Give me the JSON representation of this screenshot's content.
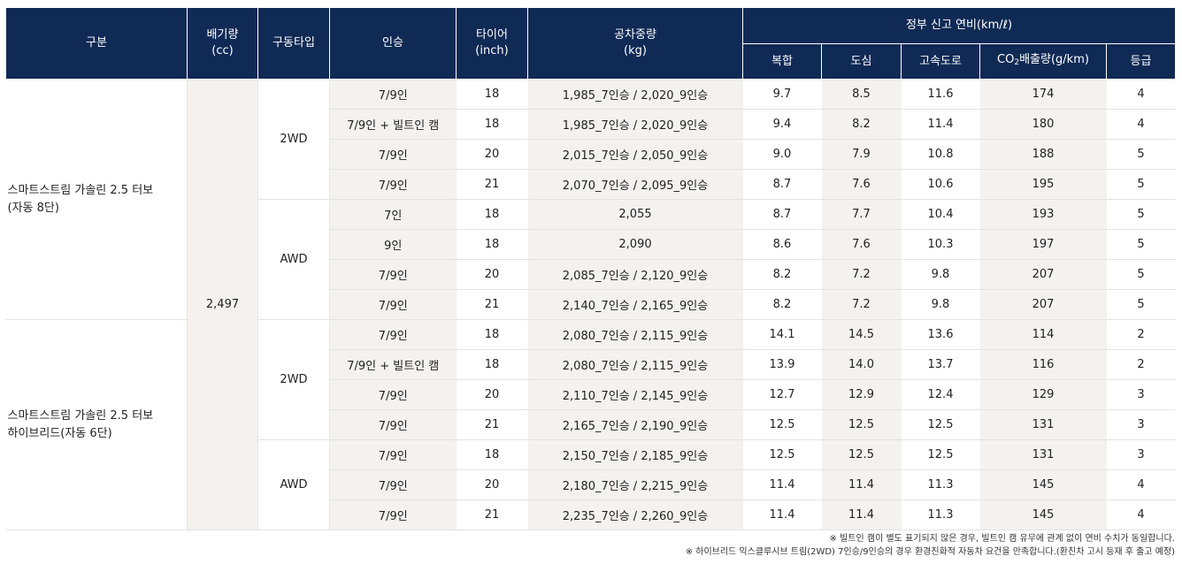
{
  "header": {
    "category": "구분",
    "displacement_line1": "배기량",
    "displacement_line2": "(cc)",
    "drive_type": "구동타입",
    "seating": "인승",
    "tire_line1": "타이어",
    "tire_line2": "(inch)",
    "curb_weight_line1": "공차중량",
    "curb_weight_line2": "(kg)",
    "fuel_economy_group": "정부 신고 연비(km/ℓ)",
    "combined": "복합",
    "urban": "도심",
    "highway": "고속도로",
    "co2_prefix": "CO",
    "co2_sub": "2",
    "co2_suffix": "배출량(g/km)",
    "grade": "등급"
  },
  "groups": [
    {
      "category_line1": "스마트스트림 가솔린 2.5 터보",
      "category_line2": "(자동 8단)",
      "drive_types": [
        {
          "drive": "2WD",
          "rows": [
            {
              "seats": "7/9인",
              "tire": "18",
              "weight": "1,985_7인승 / 2,020_9인승",
              "combined": "9.7",
              "urban": "8.5",
              "highway": "11.6",
              "co2": "174",
              "grade": "4"
            },
            {
              "seats": "7/9인 + 빌트인 캠",
              "tire": "18",
              "weight": "1,985_7인승 / 2,020_9인승",
              "combined": "9.4",
              "urban": "8.2",
              "highway": "11.4",
              "co2": "180",
              "grade": "4"
            },
            {
              "seats": "7/9인",
              "tire": "20",
              "weight": "2,015_7인승 / 2,050_9인승",
              "combined": "9.0",
              "urban": "7.9",
              "highway": "10.8",
              "co2": "188",
              "grade": "5"
            },
            {
              "seats": "7/9인",
              "tire": "21",
              "weight": "2,070_7인승 / 2,095_9인승",
              "combined": "8.7",
              "urban": "7.6",
              "highway": "10.6",
              "co2": "195",
              "grade": "5"
            }
          ]
        },
        {
          "drive": "AWD",
          "rows": [
            {
              "seats": "7인",
              "tire": "18",
              "weight": "2,055",
              "combined": "8.7",
              "urban": "7.7",
              "highway": "10.4",
              "co2": "193",
              "grade": "5"
            },
            {
              "seats": "9인",
              "tire": "18",
              "weight": "2,090",
              "combined": "8.6",
              "urban": "7.6",
              "highway": "10.3",
              "co2": "197",
              "grade": "5"
            },
            {
              "seats": "7/9인",
              "tire": "20",
              "weight": "2,085_7인승 / 2,120_9인승",
              "combined": "8.2",
              "urban": "7.2",
              "highway": "9.8",
              "co2": "207",
              "grade": "5"
            },
            {
              "seats": "7/9인",
              "tire": "21",
              "weight": "2,140_7인승 / 2,165_9인승",
              "combined": "8.2",
              "urban": "7.2",
              "highway": "9.8",
              "co2": "207",
              "grade": "5"
            }
          ]
        }
      ]
    },
    {
      "category_line1": "스마트스트림 가솔린 2.5 터보",
      "category_line2": "하이브리드(자동 6단)",
      "drive_types": [
        {
          "drive": "2WD",
          "rows": [
            {
              "seats": "7/9인",
              "tire": "18",
              "weight": "2,080_7인승 / 2,115_9인승",
              "combined": "14.1",
              "urban": "14.5",
              "highway": "13.6",
              "co2": "114",
              "grade": "2"
            },
            {
              "seats": "7/9인 + 빌트인 캠",
              "tire": "18",
              "weight": "2,080_7인승 / 2,115_9인승",
              "combined": "13.9",
              "urban": "14.0",
              "highway": "13.7",
              "co2": "116",
              "grade": "2"
            },
            {
              "seats": "7/9인",
              "tire": "20",
              "weight": "2,110_7인승 / 2,145_9인승",
              "combined": "12.7",
              "urban": "12.9",
              "highway": "12.4",
              "co2": "129",
              "grade": "3"
            },
            {
              "seats": "7/9인",
              "tire": "21",
              "weight": "2,165_7인승 / 2,190_9인승",
              "combined": "12.5",
              "urban": "12.5",
              "highway": "12.5",
              "co2": "131",
              "grade": "3"
            }
          ]
        },
        {
          "drive": "AWD",
          "rows": [
            {
              "seats": "7/9인",
              "tire": "18",
              "weight": "2,150_7인승 / 2,185_9인승",
              "combined": "12.5",
              "urban": "12.5",
              "highway": "12.5",
              "co2": "131",
              "grade": "3"
            },
            {
              "seats": "7/9인",
              "tire": "20",
              "weight": "2,180_7인승 / 2,215_9인승",
              "combined": "11.4",
              "urban": "11.4",
              "highway": "11.3",
              "co2": "145",
              "grade": "4"
            },
            {
              "seats": "7/9인",
              "tire": "21",
              "weight": "2,235_7인승 / 2,260_9인승",
              "combined": "11.4",
              "urban": "11.4",
              "highway": "11.3",
              "co2": "145",
              "grade": "4"
            }
          ]
        }
      ]
    }
  ],
  "displacement_value": "2,497",
  "footnotes": [
    "※ 빌트인 캠이 별도 표기되지 않은 경우, 빌트인 캠 유무에 관계 없이 연비 수치가 동일합니다.",
    "※ 하이브리드 익스클루시브 트림(2WD) 7인승/9인승의 경우 환경친화적 자동차 요건을 만족합니다.(환친차 고시 등재 후 출고 예정)"
  ]
}
